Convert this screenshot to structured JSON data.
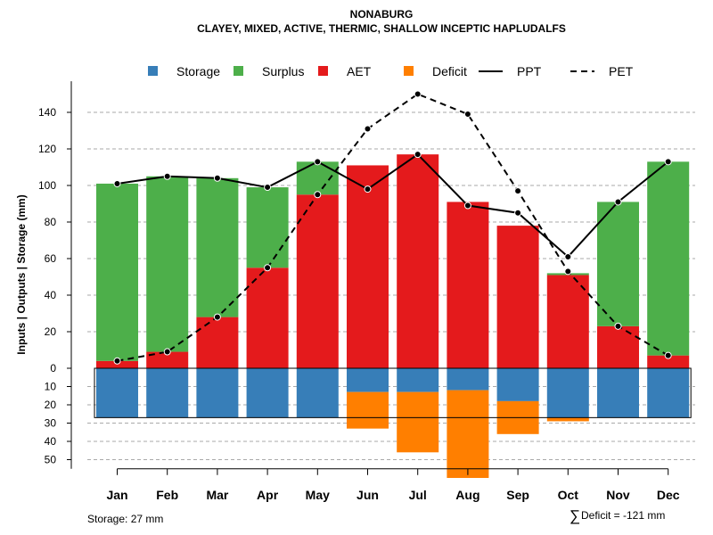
{
  "chart_data": {
    "type": "bar",
    "title": "NONABURG",
    "subtitle": "CLAYEY, MIXED, ACTIVE, THERMIC, SHALLOW INCEPTIC HAPLUDALFS",
    "ylabel": "Inputs | Outputs | Storage    (mm)",
    "categories": [
      "Jan",
      "Feb",
      "Mar",
      "Apr",
      "May",
      "Jun",
      "Jul",
      "Aug",
      "Sep",
      "Oct",
      "Nov",
      "Dec"
    ],
    "ylim": [
      -50,
      150
    ],
    "y_ticks_upper": [
      0,
      20,
      40,
      60,
      80,
      100,
      120,
      140
    ],
    "y_ticks_lower": [
      10,
      20,
      30,
      40,
      50
    ],
    "legend": [
      {
        "key": "storage",
        "label": "Storage",
        "kind": "square",
        "color": "#377EB8"
      },
      {
        "key": "surplus",
        "label": "Surplus",
        "kind": "square",
        "color": "#4DAF4A"
      },
      {
        "key": "aet",
        "label": "AET",
        "kind": "square",
        "color": "#E41A1C"
      },
      {
        "key": "deficit",
        "label": "Deficit",
        "kind": "square",
        "color": "#FF7F00"
      },
      {
        "key": "ppt",
        "label": "PPT",
        "kind": "solid-line",
        "color": "#000000"
      },
      {
        "key": "pet",
        "label": "PET",
        "kind": "dashed-line",
        "color": "#000000"
      }
    ],
    "series": [
      {
        "name": "AET",
        "values": [
          4,
          9,
          28,
          55,
          95,
          111,
          117,
          91,
          78,
          51,
          23,
          7
        ]
      },
      {
        "name": "Surplus",
        "values": [
          97,
          96,
          76,
          44,
          18,
          0,
          0,
          0,
          0,
          1,
          68,
          106
        ]
      },
      {
        "name": "Storage",
        "values": [
          27,
          27,
          27,
          27,
          27,
          13,
          13,
          12,
          18,
          27,
          27,
          27
        ]
      },
      {
        "name": "Deficit",
        "values": [
          0,
          0,
          0,
          0,
          0,
          20,
          33,
          48,
          18,
          2,
          0,
          0
        ]
      },
      {
        "name": "PPT",
        "values": [
          101,
          105,
          104,
          99,
          113,
          98,
          117,
          89,
          85,
          61,
          91,
          113
        ]
      },
      {
        "name": "PET",
        "values": [
          4,
          9,
          28,
          55,
          95,
          131,
          150,
          139,
          97,
          53,
          23,
          7
        ]
      }
    ],
    "storage_capacity": 27,
    "notes": {
      "storage": "Storage: 27 mm",
      "deficit_symbol": "∑",
      "deficit": "Deficit = -121 mm"
    }
  }
}
